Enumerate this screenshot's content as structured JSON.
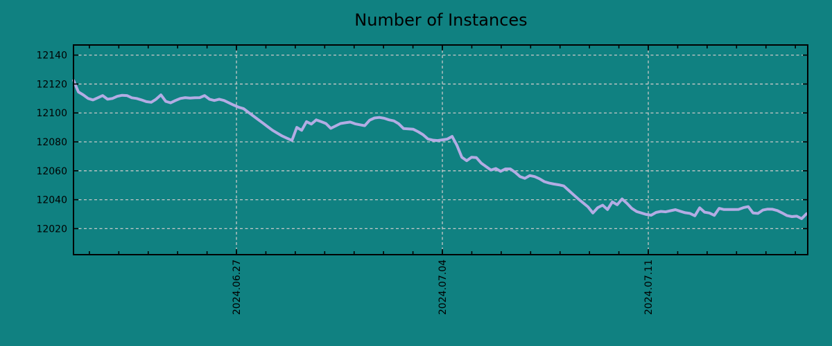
{
  "title": "Number of Instances",
  "colors": {
    "background": "#108181",
    "line": "#b3ace4",
    "grid": "#c9c9c9",
    "axis": "#000000",
    "text": "#000000"
  },
  "chart_data": {
    "type": "line",
    "title": "Number of Instances",
    "xlabel": "",
    "ylabel": "",
    "legend_position": "none",
    "grid": true,
    "x_unit": "days relative to 2024-06-27",
    "xlim": [
      -5.54,
      19.42
    ],
    "ylim": [
      12002,
      12147
    ],
    "y_ticks": [
      12020,
      12040,
      12060,
      12080,
      12100,
      12120,
      12140
    ],
    "x_major_ticks": [
      {
        "pos": 0,
        "label": "2024.06.27"
      },
      {
        "pos": 7,
        "label": "2024.07.04"
      },
      {
        "pos": 14,
        "label": "2024.07.11"
      }
    ],
    "x_minor_ticks": {
      "start": -5,
      "step": 1,
      "end": 19
    },
    "series": [
      {
        "name": "instances",
        "x_start": -5.538,
        "x_step": 0.165,
        "values": [
          12122.5,
          12114.5,
          12112.5,
          12110,
          12109,
          12110.5,
          12112,
          12109.5,
          12110,
          12111.5,
          12112.2,
          12112,
          12110.5,
          12110,
          12109,
          12107.8,
          12107.4,
          12109.5,
          12112.5,
          12108,
          12107,
          12108.6,
          12110,
          12110.6,
          12110.3,
          12110.5,
          12110.6,
          12112,
          12109.5,
          12108.6,
          12109.5,
          12108.6,
          12107,
          12105.4,
          12104,
          12103,
          12100.5,
          12098,
          12095.5,
          12093,
          12090.5,
          12088,
          12086,
          12084,
          12082.5,
          12081,
          12090,
          12088,
          12094,
          12092.3,
          12095.2,
          12094,
          12092.7,
          12089.4,
          12091,
          12092.7,
          12093.2,
          12093.7,
          12092.5,
          12091.8,
          12091.2,
          12095,
          12096.5,
          12096.9,
          12096.3,
          12095.2,
          12094.5,
          12092.5,
          12089.2,
          12089,
          12088.7,
          12087,
          12085,
          12082,
          12081.2,
          12080.9,
          12081.4,
          12081.9,
          12083.8,
          12077.5,
          12069.4,
          12067,
          12069.4,
          12069.1,
          12065.3,
          12062.9,
          12060.5,
          12061.6,
          12059.6,
          12061.3,
          12061.3,
          12058.9,
          12056,
          12054.8,
          12056.7,
          12056,
          12054.5,
          12052.5,
          12051.5,
          12050.8,
          12050.3,
          12049.5,
          12046.5,
          12043.5,
          12040.5,
          12037.8,
          12035,
          12030.8,
          12034.5,
          12036.2,
          12033.2,
          12038.5,
          12036.5,
          12040.5,
          12037.5,
          12034,
          12031.8,
          12030.8,
          12029.8,
          12029.3,
          12031.2,
          12031.9,
          12031.6,
          12032.4,
          12033.1,
          12032,
          12031,
          12030.5,
          12028.9,
          12034.4,
          12031.4,
          12030.8,
          12029.2,
          12034,
          12033.2,
          12033.2,
          12033.2,
          12033.3,
          12034.5,
          12035.2,
          12030.8,
          12030.5,
          12032.8,
          12033.5,
          12033.4,
          12032.5,
          12030.8,
          12029,
          12028.3,
          12028.6,
          12026.9,
          12030.3
        ]
      }
    ]
  }
}
